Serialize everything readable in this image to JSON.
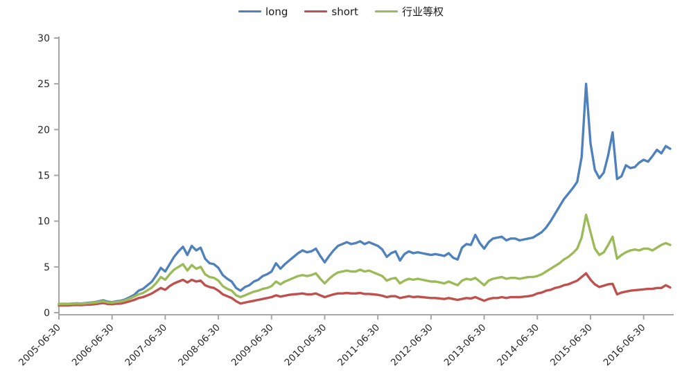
{
  "legend": {
    "items": [
      "long",
      "short",
      "行业等权"
    ]
  },
  "chart_data": {
    "type": "line",
    "title": "",
    "xlabel": "",
    "ylabel": "",
    "ylim": [
      0,
      30
    ],
    "y_ticks": [
      0,
      5,
      10,
      15,
      20,
      25,
      30
    ],
    "x_tick_labels": [
      "2005-06-30",
      "2006-06-30",
      "2007-06-30",
      "2008-06-30",
      "2009-06-30",
      "2010-06-30",
      "2011-06-30",
      "2012-06-30",
      "2013-06-30",
      "2014-06-30",
      "2015-06-30",
      "2016-06-30"
    ],
    "x_start_month": "2005-06",
    "x_interval": "monthly",
    "grid": false,
    "legend_position": "top-center",
    "axis_color": "#a6a6a6",
    "series": [
      {
        "name": "long",
        "color": "#4f81bd",
        "values": [
          0.95,
          0.97,
          0.96,
          1.0,
          1.02,
          1.0,
          1.05,
          1.1,
          1.15,
          1.25,
          1.35,
          1.2,
          1.15,
          1.25,
          1.3,
          1.45,
          1.7,
          1.95,
          2.4,
          2.6,
          3.0,
          3.4,
          4.1,
          4.9,
          4.5,
          5.3,
          6.1,
          6.7,
          7.2,
          6.3,
          7.3,
          6.8,
          7.1,
          5.9,
          5.4,
          5.3,
          4.9,
          4.1,
          3.7,
          3.4,
          2.7,
          2.4,
          2.8,
          3.0,
          3.4,
          3.6,
          4.0,
          4.2,
          4.5,
          5.4,
          4.8,
          5.3,
          5.7,
          6.1,
          6.5,
          6.8,
          6.6,
          6.7,
          7.0,
          6.2,
          5.5,
          6.2,
          6.8,
          7.3,
          7.5,
          7.7,
          7.5,
          7.6,
          7.8,
          7.5,
          7.7,
          7.5,
          7.3,
          6.9,
          6.1,
          6.5,
          6.7,
          5.7,
          6.4,
          6.7,
          6.5,
          6.6,
          6.5,
          6.4,
          6.3,
          6.4,
          6.3,
          6.2,
          6.5,
          6.0,
          5.8,
          7.1,
          7.5,
          7.4,
          8.5,
          7.6,
          7.0,
          7.7,
          8.1,
          8.2,
          8.3,
          7.9,
          8.1,
          8.1,
          7.9,
          8.0,
          8.1,
          8.2,
          8.5,
          8.8,
          9.3,
          10.0,
          10.8,
          11.6,
          12.4,
          13.0,
          13.6,
          14.3,
          17.0,
          25.0,
          18.5,
          15.6,
          14.7,
          15.3,
          17.2,
          19.7,
          14.6,
          14.9,
          16.1,
          15.8,
          15.9,
          16.4,
          16.7,
          16.5,
          17.1,
          17.8,
          17.4,
          18.2,
          17.9
        ]
      },
      {
        "name": "short",
        "color": "#c0504d",
        "values": [
          0.78,
          0.8,
          0.79,
          0.82,
          0.85,
          0.83,
          0.86,
          0.88,
          0.92,
          0.98,
          1.05,
          0.95,
          0.92,
          0.98,
          1.0,
          1.1,
          1.25,
          1.4,
          1.6,
          1.7,
          1.9,
          2.1,
          2.4,
          2.7,
          2.5,
          2.9,
          3.2,
          3.4,
          3.6,
          3.3,
          3.6,
          3.4,
          3.5,
          3.0,
          2.8,
          2.7,
          2.4,
          2.0,
          1.8,
          1.6,
          1.25,
          1.0,
          1.1,
          1.2,
          1.3,
          1.4,
          1.5,
          1.6,
          1.7,
          1.9,
          1.75,
          1.85,
          1.95,
          2.0,
          2.05,
          2.1,
          2.0,
          2.0,
          2.1,
          1.9,
          1.7,
          1.85,
          2.0,
          2.1,
          2.1,
          2.15,
          2.1,
          2.1,
          2.15,
          2.05,
          2.05,
          2.0,
          1.95,
          1.85,
          1.7,
          1.8,
          1.8,
          1.6,
          1.7,
          1.8,
          1.7,
          1.75,
          1.7,
          1.65,
          1.6,
          1.6,
          1.55,
          1.5,
          1.6,
          1.5,
          1.4,
          1.5,
          1.6,
          1.55,
          1.7,
          1.5,
          1.3,
          1.5,
          1.6,
          1.6,
          1.7,
          1.6,
          1.7,
          1.7,
          1.7,
          1.75,
          1.8,
          1.9,
          2.1,
          2.2,
          2.4,
          2.5,
          2.7,
          2.8,
          3.0,
          3.1,
          3.3,
          3.5,
          3.9,
          4.3,
          3.6,
          3.1,
          2.8,
          2.95,
          3.1,
          3.15,
          2.0,
          2.2,
          2.3,
          2.4,
          2.45,
          2.5,
          2.55,
          2.6,
          2.6,
          2.7,
          2.7,
          3.0,
          2.75
        ]
      },
      {
        "name": "行业等权",
        "color": "#9bbb59",
        "values": [
          0.93,
          0.95,
          0.94,
          0.98,
          1.0,
          0.98,
          1.02,
          1.05,
          1.1,
          1.18,
          1.25,
          1.12,
          1.1,
          1.18,
          1.22,
          1.35,
          1.55,
          1.75,
          2.0,
          2.15,
          2.45,
          2.75,
          3.25,
          3.9,
          3.6,
          4.2,
          4.7,
          5.0,
          5.3,
          4.6,
          5.2,
          4.8,
          5.0,
          4.2,
          3.9,
          3.8,
          3.5,
          2.9,
          2.6,
          2.4,
          1.9,
          1.7,
          1.9,
          2.1,
          2.3,
          2.4,
          2.6,
          2.7,
          2.9,
          3.4,
          3.1,
          3.4,
          3.6,
          3.8,
          4.0,
          4.1,
          4.0,
          4.1,
          4.3,
          3.7,
          3.2,
          3.7,
          4.1,
          4.4,
          4.5,
          4.6,
          4.5,
          4.5,
          4.7,
          4.5,
          4.6,
          4.4,
          4.2,
          4.0,
          3.5,
          3.7,
          3.8,
          3.2,
          3.5,
          3.7,
          3.6,
          3.7,
          3.6,
          3.5,
          3.4,
          3.4,
          3.3,
          3.2,
          3.4,
          3.2,
          3.0,
          3.5,
          3.7,
          3.6,
          3.8,
          3.4,
          3.0,
          3.5,
          3.7,
          3.8,
          3.9,
          3.7,
          3.8,
          3.8,
          3.7,
          3.8,
          3.9,
          3.9,
          4.0,
          4.2,
          4.5,
          4.8,
          5.1,
          5.4,
          5.8,
          6.1,
          6.5,
          7.0,
          8.2,
          10.7,
          8.8,
          7.0,
          6.3,
          6.6,
          7.4,
          8.3,
          5.9,
          6.3,
          6.6,
          6.8,
          6.9,
          6.8,
          7.0,
          7.0,
          6.8,
          7.1,
          7.4,
          7.6,
          7.4
        ]
      }
    ]
  }
}
